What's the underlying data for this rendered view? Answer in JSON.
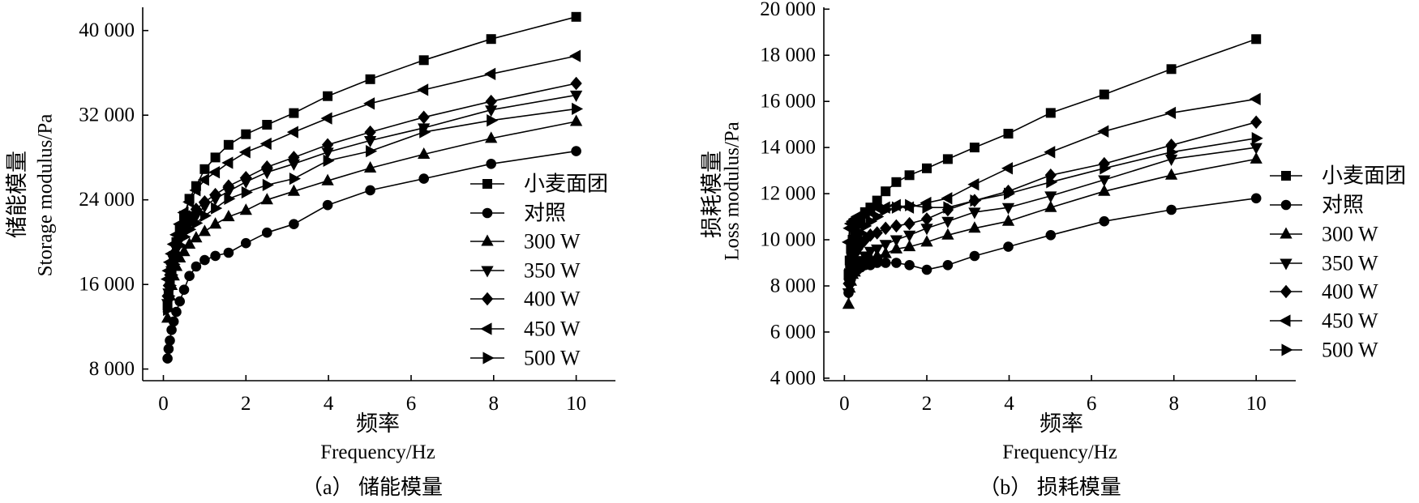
{
  "chart_data": [
    {
      "type": "line",
      "caption": "（a） 储能模量",
      "ylabel_cn": "储能模量",
      "ylabel": "Storage modulus/Pa",
      "xlabel_cn": "频率",
      "xlabel": "Frequency/Hz",
      "color": "#000000",
      "grid": false,
      "legend_position": "right",
      "xlim": [
        -0.5,
        10.95
      ],
      "ylim": [
        6900,
        42200
      ],
      "xticks": [
        0,
        2,
        4,
        6,
        8,
        10
      ],
      "xtick_labels": [
        "0",
        "2",
        "4",
        "6",
        "8",
        "10"
      ],
      "yticks": [
        8000,
        16000,
        24000,
        32000,
        40000
      ],
      "ytick_labels": [
        "8 000",
        "16 000",
        "24 000",
        "32 000",
        "40 000"
      ],
      "x": [
        0.1,
        0.126,
        0.158,
        0.2,
        0.251,
        0.316,
        0.398,
        0.501,
        0.631,
        0.794,
        1,
        1.26,
        1.58,
        2,
        2.51,
        3.16,
        3.98,
        5.01,
        6.31,
        7.94,
        10
      ],
      "series": [
        {
          "name": "小麦面团",
          "marker": "square",
          "values": [
            14000,
            15100,
            16200,
            17400,
            18700,
            20000,
            21200,
            22500,
            24100,
            25300,
            26900,
            28000,
            29200,
            30200,
            31100,
            32200,
            33800,
            35400,
            37200,
            39200,
            41300
          ]
        },
        {
          "name": "对照",
          "marker": "circle",
          "values": [
            9000,
            9900,
            10700,
            11700,
            12500,
            13400,
            14400,
            15500,
            16800,
            17700,
            18300,
            18700,
            19000,
            19900,
            20900,
            21700,
            23500,
            24900,
            26000,
            27400,
            28600
          ]
        },
        {
          "name": "300 W",
          "marker": "triangle-up",
          "values": [
            12800,
            13800,
            14900,
            15900,
            16800,
            17700,
            18500,
            19100,
            19800,
            20400,
            21000,
            21700,
            22400,
            23000,
            24000,
            24800,
            25800,
            27000,
            28300,
            29800,
            31400
          ]
        },
        {
          "name": "350 W",
          "marker": "triangle-down",
          "values": [
            14200,
            15200,
            16200,
            17300,
            18300,
            19300,
            20200,
            21100,
            21800,
            22500,
            23400,
            24100,
            24800,
            25700,
            26600,
            27400,
            28500,
            29600,
            30800,
            32500,
            33900
          ]
        },
        {
          "name": "400 W",
          "marker": "diamond",
          "values": [
            14900,
            15900,
            16900,
            17900,
            18900,
            19800,
            20700,
            21500,
            22400,
            23100,
            23800,
            24500,
            25300,
            26100,
            27100,
            28000,
            29200,
            30400,
            31800,
            33300,
            35000
          ]
        },
        {
          "name": "450 W",
          "marker": "triangle-left",
          "values": [
            16500,
            17300,
            18100,
            18900,
            19800,
            20700,
            21700,
            22800,
            23800,
            24900,
            25900,
            26600,
            27500,
            28500,
            29300,
            30400,
            31700,
            33100,
            34400,
            35900,
            37600
          ]
        },
        {
          "name": "500 W",
          "marker": "triangle-right",
          "values": [
            13600,
            14900,
            15900,
            16900,
            17900,
            18900,
            19700,
            20500,
            21200,
            21800,
            22500,
            23200,
            24100,
            24700,
            25400,
            26000,
            27700,
            28600,
            30400,
            31500,
            32600
          ]
        }
      ]
    },
    {
      "type": "line",
      "caption": "（b） 损耗模量",
      "ylabel_cn": "损耗模量",
      "ylabel": "Loss modulus/Pa",
      "xlabel_cn": "频率",
      "xlabel": "Frequency/Hz",
      "color": "#000000",
      "grid": false,
      "legend_position": "right",
      "xlim": [
        -0.5,
        10.96
      ],
      "ylim": [
        3890,
        20080
      ],
      "xticks": [
        0,
        2,
        4,
        6,
        8,
        10
      ],
      "xtick_labels": [
        "0",
        "2",
        "4",
        "6",
        "8",
        "10"
      ],
      "yticks": [
        4000,
        6000,
        8000,
        10000,
        12000,
        14000,
        16000,
        18000,
        20000
      ],
      "ytick_labels": [
        "4 000",
        "6 000",
        "8 000",
        "10 000",
        "12 000",
        "14 000",
        "16 000",
        "18 000",
        "20 000"
      ],
      "x": [
        0.1,
        0.126,
        0.158,
        0.2,
        0.251,
        0.316,
        0.398,
        0.501,
        0.631,
        0.794,
        1,
        1.26,
        1.58,
        2,
        2.51,
        3.16,
        3.98,
        5.01,
        6.31,
        7.94,
        10
      ],
      "series": [
        {
          "name": "小麦面团",
          "marker": "square",
          "values": [
            8500,
            9100,
            9600,
            10000,
            10300,
            10700,
            10900,
            11200,
            11400,
            11700,
            12100,
            12500,
            12800,
            13100,
            13500,
            14000,
            14600,
            15500,
            16300,
            17400,
            18700
          ]
        },
        {
          "name": "对照",
          "marker": "circle",
          "values": [
            7700,
            8100,
            8300,
            8500,
            8600,
            8700,
            8800,
            8900,
            8900,
            9000,
            9000,
            9000,
            8900,
            8700,
            8900,
            9300,
            9700,
            10200,
            10800,
            11300,
            11800
          ]
        },
        {
          "name": "300 W",
          "marker": "triangle-up",
          "values": [
            7200,
            7900,
            8200,
            8500,
            8600,
            8800,
            8900,
            9100,
            9200,
            9300,
            9400,
            9600,
            9700,
            9900,
            10200,
            10500,
            10800,
            11400,
            12100,
            12800,
            13500
          ]
        },
        {
          "name": "350 W",
          "marker": "triangle-down",
          "values": [
            7700,
            8100,
            8400,
            8600,
            8800,
            9000,
            9100,
            9300,
            9500,
            9600,
            9800,
            10000,
            10200,
            10500,
            10800,
            11200,
            11400,
            11900,
            12600,
            13500,
            14000
          ]
        },
        {
          "name": "400 W",
          "marker": "diamond",
          "values": [
            8100,
            8500,
            8900,
            9100,
            9400,
            9600,
            9800,
            10000,
            10200,
            10300,
            10500,
            10600,
            10700,
            10900,
            11300,
            11700,
            12100,
            12800,
            13300,
            14100,
            15100
          ]
        },
        {
          "name": "450 W",
          "marker": "triangle-left",
          "values": [
            9900,
            10500,
            10700,
            10800,
            10900,
            11000,
            11000,
            11100,
            11200,
            11400,
            11400,
            11500,
            11400,
            11600,
            11800,
            12400,
            13100,
            13800,
            14700,
            15500,
            16100
          ]
        },
        {
          "name": "500 W",
          "marker": "triangle-right",
          "values": [
            8500,
            8900,
            9300,
            9600,
            9900,
            10100,
            10300,
            10600,
            10800,
            11000,
            11300,
            11400,
            11500,
            11400,
            11400,
            11700,
            12000,
            12500,
            13100,
            13800,
            14400
          ]
        }
      ]
    }
  ]
}
